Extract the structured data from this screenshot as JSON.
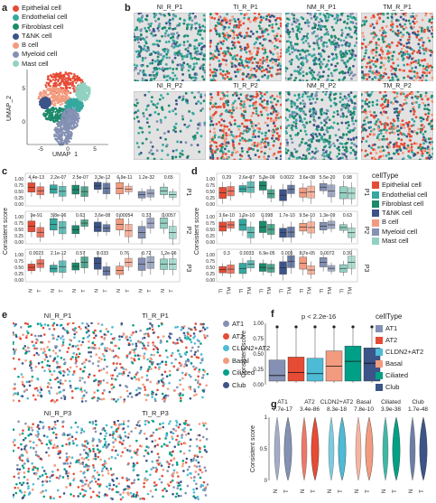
{
  "panel_labels": {
    "a": "a",
    "b": "b",
    "c": "c",
    "d": "d",
    "e": "e",
    "f": "f",
    "g": "g"
  },
  "cell_types": [
    {
      "name": "Epithelial cell",
      "color": "#e64b35"
    },
    {
      "name": "Endothelial cell",
      "color": "#35a8a0"
    },
    {
      "name": "Fibroblast cell",
      "color": "#1c8a6b"
    },
    {
      "name": "T&NK cell",
      "color": "#3c5488"
    },
    {
      "name": "B cell",
      "color": "#f39b7f"
    },
    {
      "name": "Myeloid cell",
      "color": "#8491b4"
    },
    {
      "name": "Mast cell",
      "color": "#91d1c2"
    }
  ],
  "legend_title_celltype": "cellType",
  "umap": {
    "xlabel": "UMAP_1",
    "ylabel": "UMAP_2",
    "xticks": [
      "-5",
      "0",
      "5"
    ],
    "yticks": [
      "0",
      "5"
    ]
  },
  "spatial_b_top": [
    "NI_R_P1",
    "TI_R_P1",
    "NM_R_P1",
    "TM_R_P1"
  ],
  "spatial_b_bottom": [
    "NI_R_P2",
    "TI_R_P2",
    "NM_R_P2",
    "TM_R_P2"
  ],
  "score_label": "Consistent score",
  "box_ticks": [
    "0.00",
    "0.25",
    "0.50",
    "0.75",
    "1.00"
  ],
  "c_rows": [
    {
      "name": "P1",
      "pvals": [
        "4.4e-13",
        "2.2e-07",
        "2.5e-07",
        "3.3e-12",
        "6.9e-11",
        "1.2e-32",
        "0.65"
      ]
    },
    {
      "name": "P2",
      "pvals": [
        "9e-91",
        "3.8e-06",
        "0.63",
        "3.6e-08",
        "0.00054",
        "0.33",
        "0.0057"
      ]
    },
    {
      "name": "P3",
      "pvals": [
        "0.0023",
        "2.1e-12",
        "0.57",
        "0.033",
        "0.76",
        "0.72",
        "1.2e-06"
      ]
    }
  ],
  "c_xlabels": [
    "N",
    "T"
  ],
  "d_rows": [
    {
      "name": "P1",
      "pvals": [
        "0.29",
        "2.6e-07",
        "5.3e-09",
        "0.0022",
        "3.6e-08",
        "5.5e-20",
        "0.98"
      ]
    },
    {
      "name": "P2",
      "pvals": [
        "3.6e-10",
        "1.2e-10",
        "0.098",
        "1.7e-10",
        "9.5e-10",
        "1.3e-09",
        "0.63"
      ]
    },
    {
      "name": "P3",
      "pvals": [
        "0.3",
        "0.0033",
        "6.9e-05",
        "0.005",
        "8.7e-05",
        "0.0072",
        "0.39"
      ]
    }
  ],
  "d_xlabels": [
    "TI",
    "TM"
  ],
  "e_titles": [
    "NI_R_P1",
    "TI_R_P1",
    "NI_R_P3",
    "TI_R_P3"
  ],
  "epi_types": [
    {
      "name": "AT1",
      "color": "#8491b4"
    },
    {
      "name": "AT2",
      "color": "#e64b35"
    },
    {
      "name": "CLDN2+AT2",
      "color": "#4dbbd5"
    },
    {
      "name": "Basal",
      "color": "#f39b7f"
    },
    {
      "name": "Ciliated",
      "color": "#00a087"
    },
    {
      "name": "Club",
      "color": "#3c5488"
    }
  ],
  "f_pval": "p < 2.2e-16",
  "f_ticks": [
    "0.00",
    "0.25",
    "0.50",
    "0.75",
    "1.00"
  ],
  "g_types": [
    {
      "name": "AT1",
      "p": "7.7e-17"
    },
    {
      "name": "AT2",
      "p": "3.4e-86"
    },
    {
      "name": "CLDN2+AT2",
      "p": "8.3e-18"
    },
    {
      "name": "Basal",
      "p": "7.8e-10"
    },
    {
      "name": "Ciliated",
      "p": "3.9e-38"
    },
    {
      "name": "Club",
      "p": "1.7e-48"
    }
  ],
  "g_ticks": [
    "0",
    "0.5",
    "1"
  ],
  "g_xlabels": [
    "N",
    "T"
  ]
}
